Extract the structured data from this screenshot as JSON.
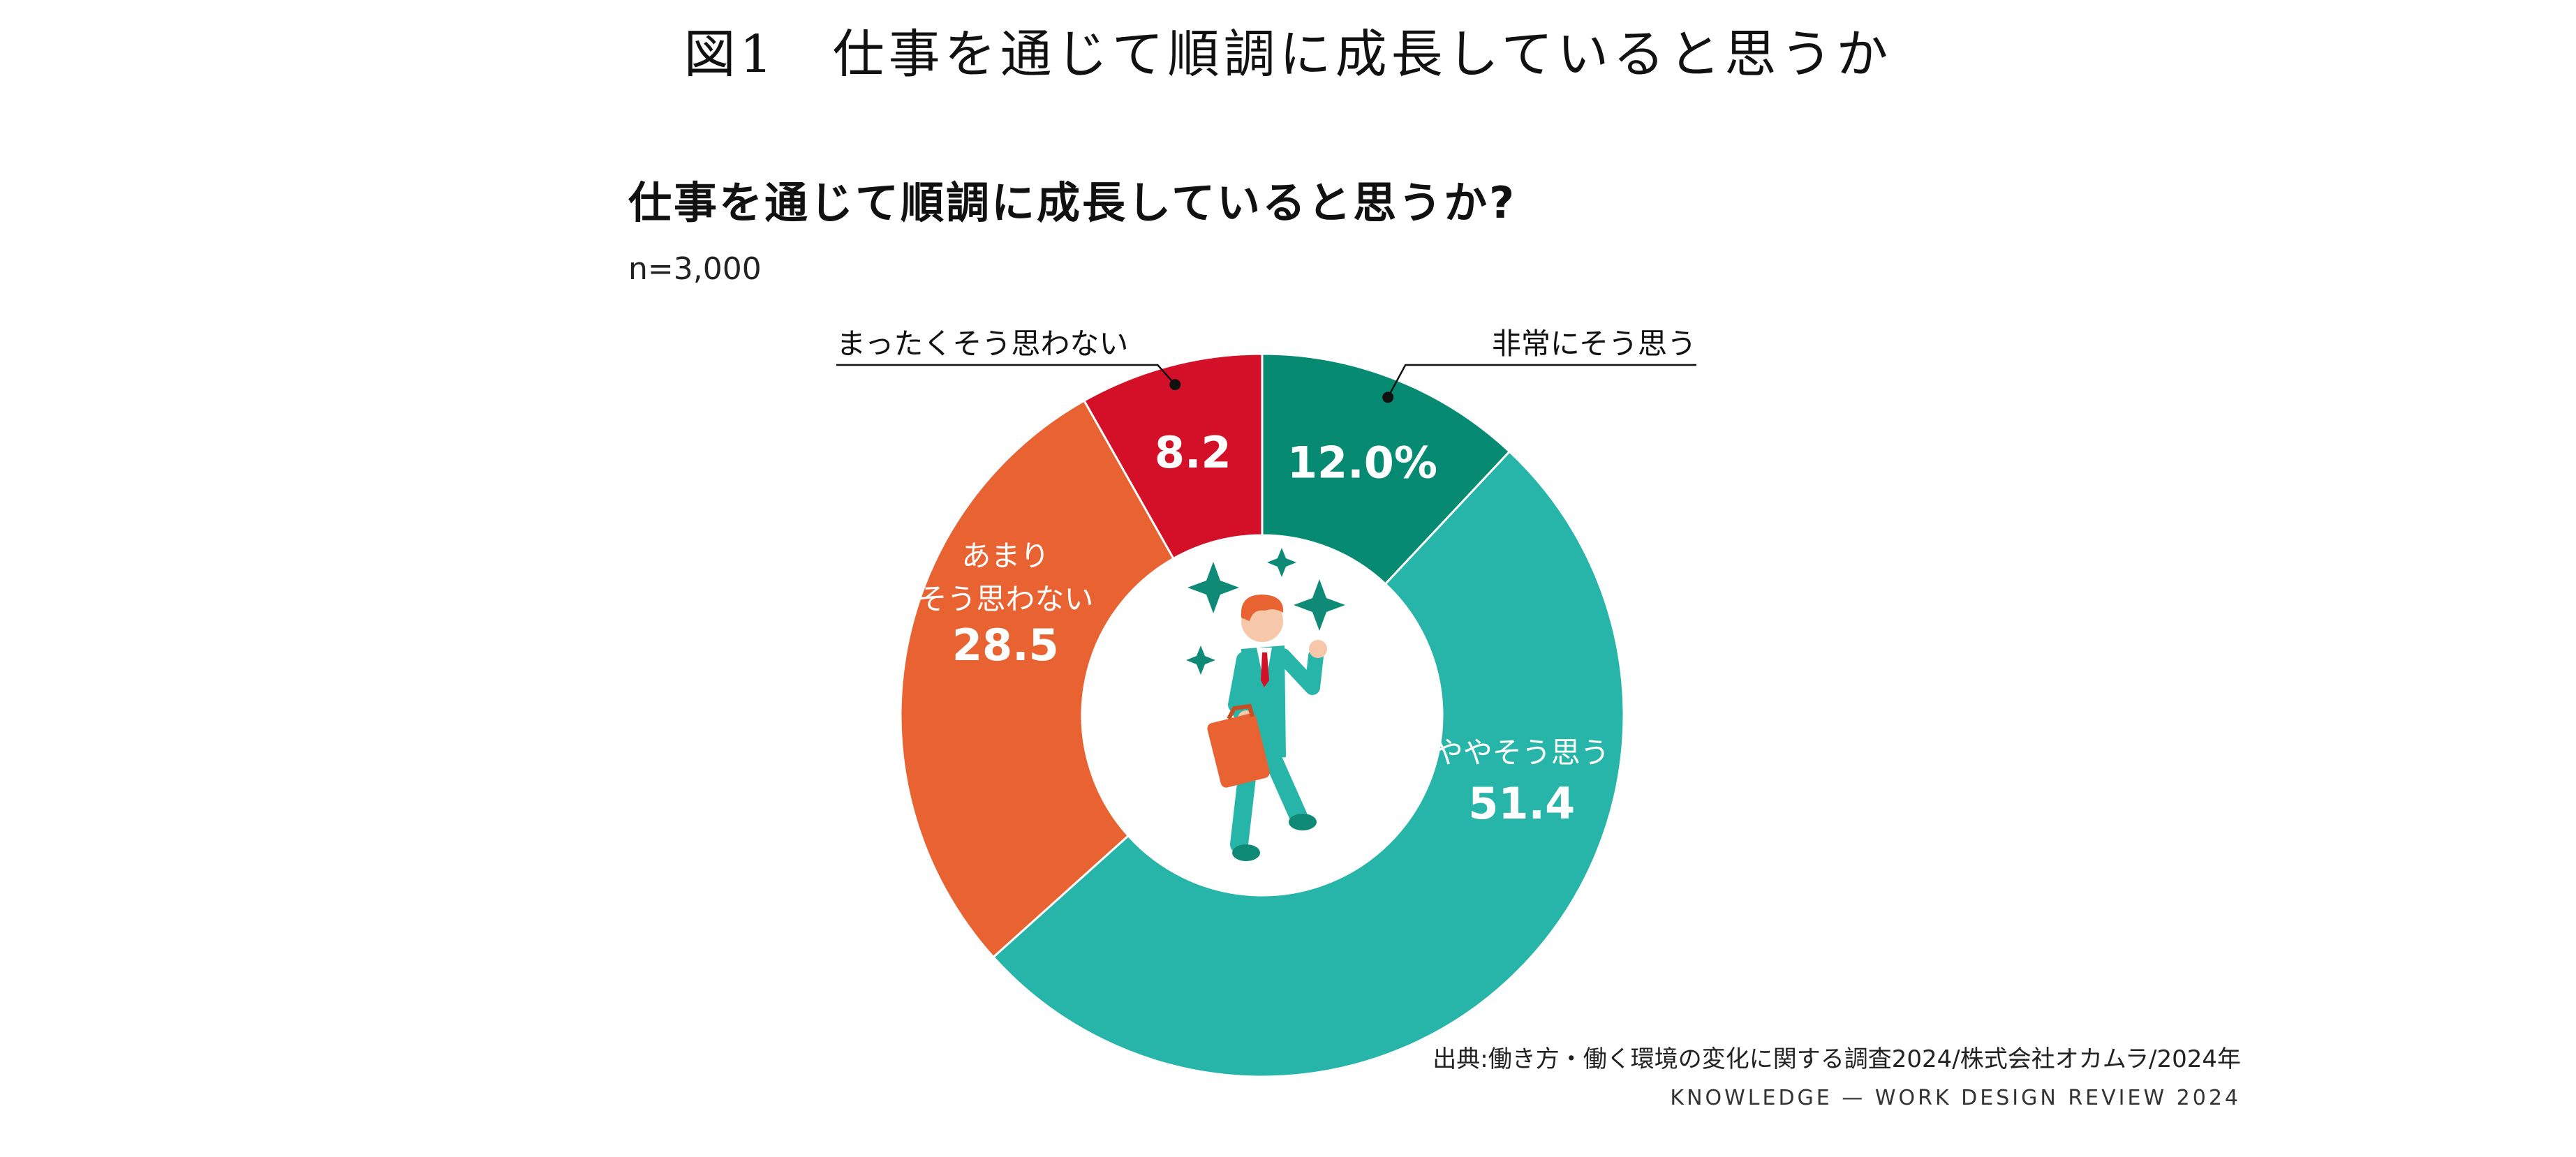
{
  "figure_title": "図1　仕事を通じて順調に成長していると思うか",
  "chart_title": "仕事を通じて順調に成長していると思うか?",
  "sample_size": "n=3,000",
  "source": "出典:働き方・働く環境の変化に関する調査2024/株式会社オカムラ/2024年",
  "footer": "KNOWLEDGE — WORK DESIGN REVIEW 2024",
  "chart_data": {
    "type": "pie",
    "title": "仕事を通じて順調に成長していると思うか?",
    "slices": [
      {
        "label": "非常にそう思う",
        "value": 12.0,
        "value_label": "12.0%",
        "color": "#068a71"
      },
      {
        "label": "ややそう思う",
        "value": 51.4,
        "value_label": "51.4",
        "color": "#26b5a8"
      },
      {
        "label": "あまりそう思わない",
        "value": 28.5,
        "value_label": "28.5",
        "color": "#e86232"
      },
      {
        "label": "まったくそう思わない",
        "value": 8.2,
        "value_label": "8.2",
        "color": "#d41029"
      }
    ]
  }
}
